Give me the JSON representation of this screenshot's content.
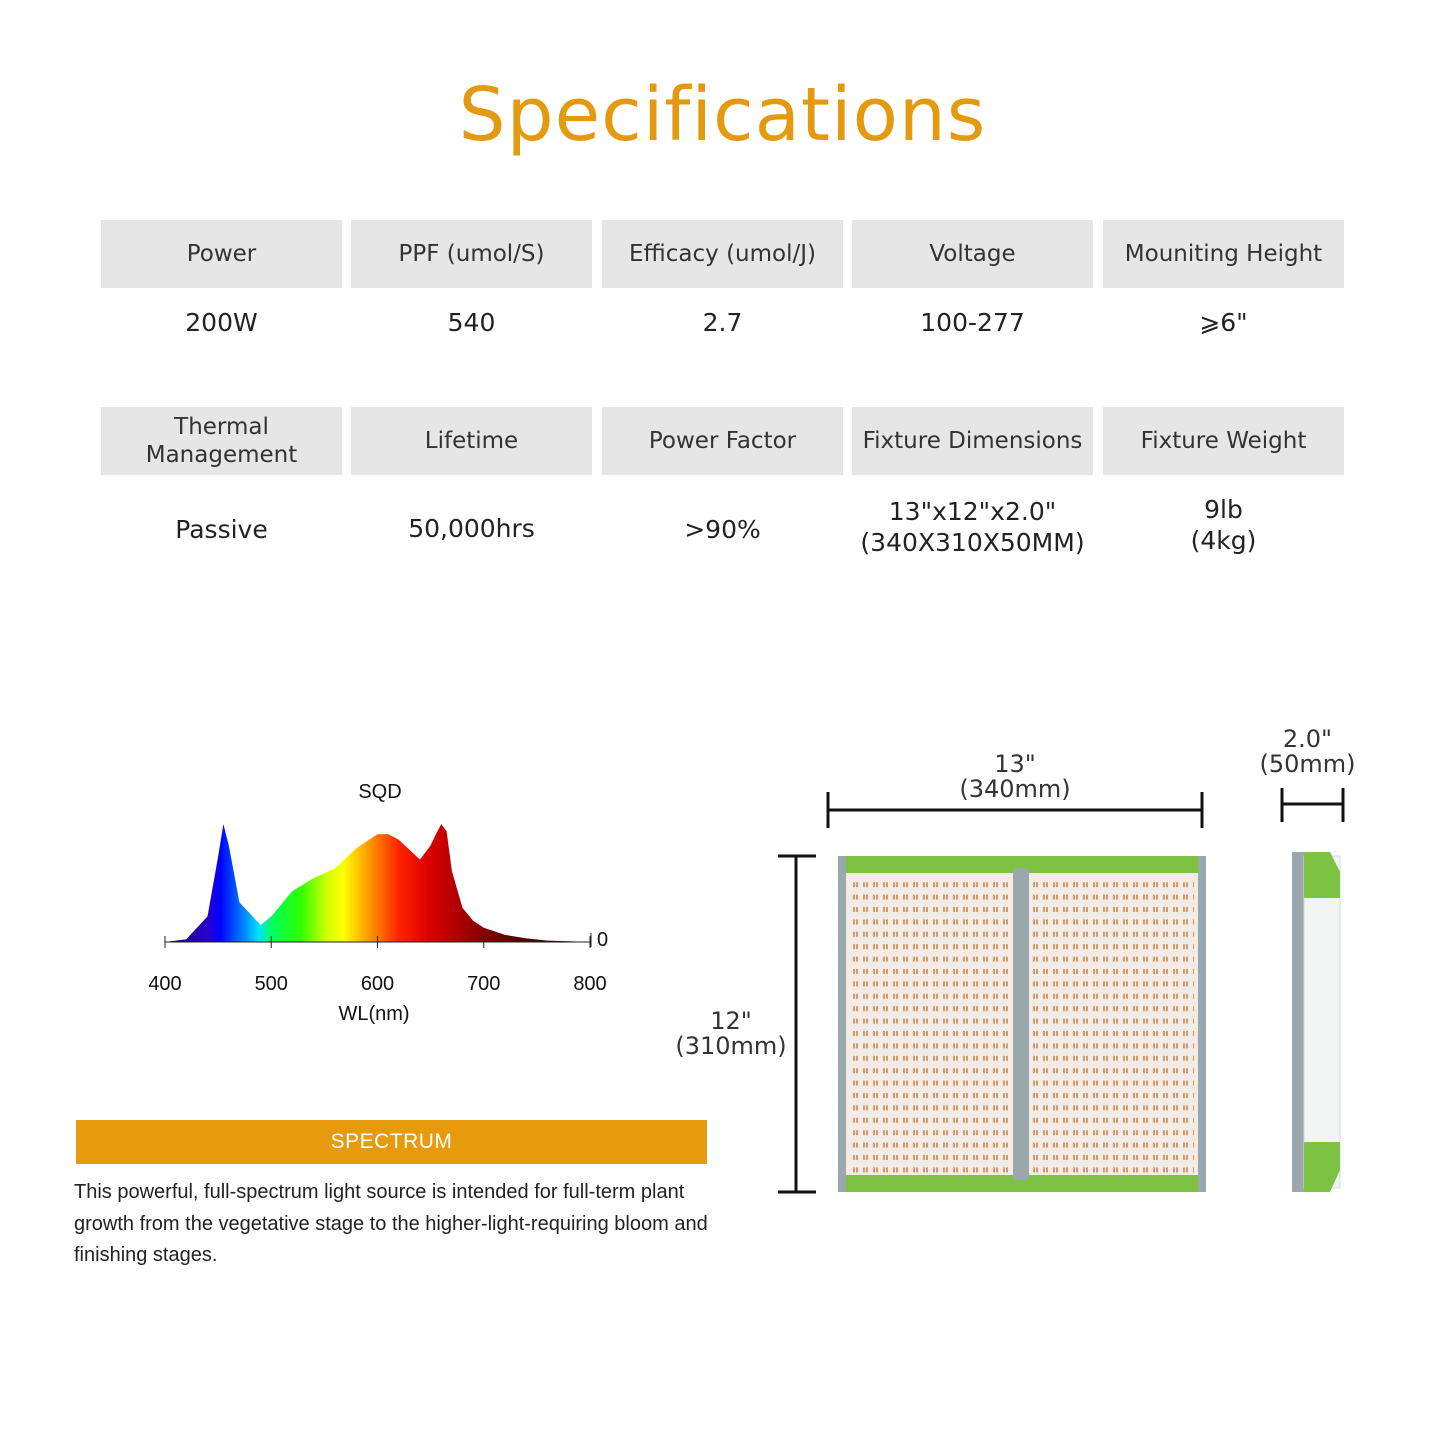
{
  "title": "Specifications",
  "specs_row1": {
    "headers": [
      "Power",
      "PPF (umol/S)",
      "Efficacy (umol/J)",
      "Voltage",
      "Mouniting Height"
    ],
    "values": [
      [
        "200W"
      ],
      [
        "540"
      ],
      [
        "2.7"
      ],
      [
        "100-277"
      ],
      [
        "⩾6\""
      ]
    ]
  },
  "specs_row2": {
    "headers": [
      [
        "Thermal",
        "Management"
      ],
      [
        "Lifetime"
      ],
      [
        "Power Factor"
      ],
      [
        "Fixture Dimensions"
      ],
      [
        "Fixture Weight"
      ]
    ],
    "values": [
      [
        "Passive"
      ],
      [
        "50,000hrs"
      ],
      [
        ">90%"
      ],
      [
        "13\"x12\"x2.0\"",
        "(340X310X50MM)"
      ],
      [
        "9lb",
        "(4kg)"
      ]
    ]
  },
  "chart_data": {
    "type": "area",
    "title": "SQD",
    "xlabel": "WL(nm)",
    "ylabel": "",
    "xlim": [
      400,
      800
    ],
    "x_ticks": [
      "400",
      "500",
      "600",
      "700",
      "800"
    ],
    "y_ticks": [
      "0"
    ],
    "x": [
      400,
      420,
      440,
      450,
      455,
      460,
      470,
      480,
      490,
      500,
      520,
      540,
      560,
      580,
      600,
      610,
      620,
      630,
      640,
      650,
      655,
      660,
      665,
      670,
      680,
      690,
      700,
      720,
      740,
      760,
      780,
      800
    ],
    "values": [
      0.0,
      0.02,
      0.18,
      0.6,
      0.83,
      0.68,
      0.28,
      0.2,
      0.12,
      0.18,
      0.36,
      0.45,
      0.52,
      0.66,
      0.76,
      0.76,
      0.72,
      0.65,
      0.58,
      0.68,
      0.76,
      0.83,
      0.78,
      0.5,
      0.24,
      0.15,
      0.1,
      0.05,
      0.025,
      0.01,
      0.005,
      0.0
    ]
  },
  "spectrum_banner": "SPECTRUM",
  "description": "This powerful, full-spectrum light source is intended for full-term plant growth from the vegetative stage to the higher-light-requiring bloom and finishing stages.",
  "dimensions": {
    "width": [
      "13\"",
      "(340mm)"
    ],
    "height": [
      "12\"",
      "(310mm)"
    ],
    "depth": [
      "2.0\"",
      "(50mm)"
    ]
  },
  "colors": {
    "title": "#e39a10",
    "banner": "#e69a0c",
    "header_bg": "#e6e6e6",
    "fixture_green": "#7dc242",
    "fixture_frame": "#9aa7ad"
  }
}
